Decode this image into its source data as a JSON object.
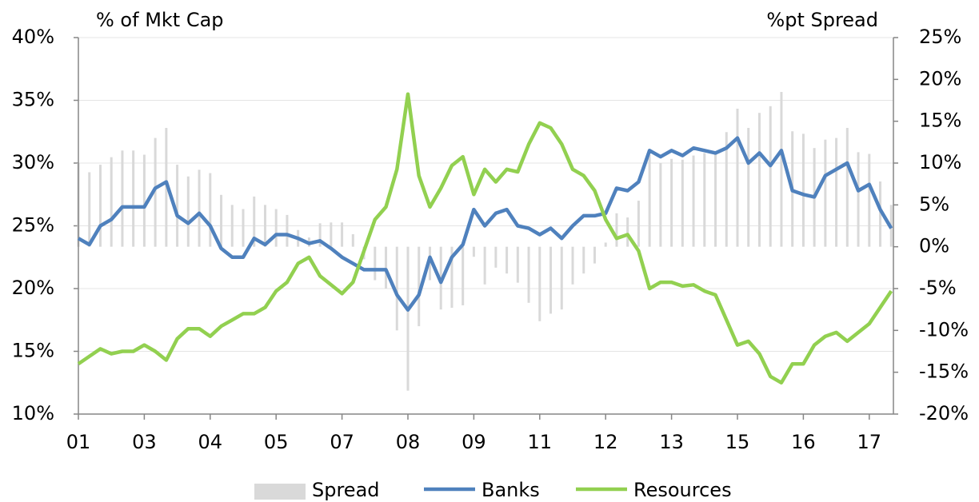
{
  "chart_data": {
    "type": "line",
    "y_label": "% of Mkt Cap",
    "y2_label": "%pt Spread",
    "categories": [
      "01",
      null,
      null,
      null,
      null,
      null,
      "03",
      null,
      null,
      null,
      null,
      null,
      "04",
      null,
      null,
      null,
      null,
      null,
      "05",
      null,
      null,
      null,
      null,
      null,
      "07",
      null,
      null,
      null,
      null,
      null,
      "08",
      null,
      null,
      null,
      null,
      null,
      "09",
      null,
      null,
      null,
      null,
      null,
      "11",
      null,
      null,
      null,
      null,
      null,
      "12",
      null,
      null,
      null,
      null,
      null,
      "13",
      null,
      null,
      null,
      null,
      null,
      "15",
      null,
      null,
      null,
      null,
      null,
      "16",
      null,
      null,
      null,
      null,
      null,
      "17",
      null,
      null
    ],
    "series": [
      {
        "name": "Spread",
        "kind": "bar",
        "axis": "y2",
        "color": "#d9d9d9",
        "values": [
          10,
          8.9,
          9.8,
          10.7,
          11.5,
          11.5,
          11,
          13,
          14.2,
          9.8,
          8.4,
          9.2,
          8.8,
          6.2,
          5,
          4.5,
          6,
          5,
          4.5,
          3.8,
          2,
          1.1,
          2.8,
          2.9,
          2.9,
          1.5,
          -1.5,
          -4,
          -5,
          -10,
          -17.2,
          -9.5,
          -4,
          -7.5,
          -7.3,
          -7,
          -1.2,
          -4.5,
          -2.5,
          -3.2,
          -4.3,
          -6.7,
          -8.9,
          -8,
          -7.5,
          -4.5,
          -3.2,
          -2,
          0.5,
          4,
          3.5,
          5.5,
          11,
          10,
          10.5,
          10.4,
          10.9,
          11.2,
          11.3,
          13.7,
          16.5,
          14.2,
          16,
          16.8,
          18.5,
          13.8,
          13.5,
          11.8,
          12.8,
          13,
          14.2,
          11.3,
          11.1,
          7.8,
          5
        ]
      },
      {
        "name": "Banks",
        "kind": "line",
        "color": "#4f81bd",
        "values": [
          24,
          23.5,
          25,
          25.5,
          26.5,
          26.5,
          26.5,
          28,
          28.5,
          25.8,
          25.2,
          26,
          25,
          23.2,
          22.5,
          22.5,
          24,
          23.5,
          24.3,
          24.3,
          24,
          23.6,
          23.8,
          23.2,
          22.5,
          22,
          21.5,
          21.5,
          21.5,
          19.5,
          18.3,
          19.5,
          22.5,
          20.5,
          22.5,
          23.5,
          26.3,
          25,
          26,
          26.3,
          25,
          24.8,
          24.3,
          24.8,
          24,
          25,
          25.8,
          25.8,
          26,
          28,
          27.8,
          28.5,
          31,
          30.5,
          31,
          30.6,
          31.2,
          31,
          30.8,
          31.2,
          32,
          30,
          30.8,
          29.8,
          31,
          27.8,
          27.5,
          27.3,
          29,
          29.5,
          30,
          27.8,
          28.3,
          26.3,
          24.8
        ]
      },
      {
        "name": "Resources",
        "kind": "line",
        "color": "#92d050",
        "values": [
          14,
          14.6,
          15.2,
          14.8,
          15,
          15,
          15.5,
          15,
          14.3,
          16,
          16.8,
          16.8,
          16.2,
          17,
          17.5,
          18,
          18,
          18.5,
          19.8,
          20.5,
          22,
          22.5,
          21,
          20.3,
          19.6,
          20.5,
          23,
          25.5,
          26.5,
          29.5,
          35.5,
          29,
          26.5,
          28,
          29.8,
          30.5,
          27.5,
          29.5,
          28.5,
          29.5,
          29.3,
          31.5,
          33.2,
          32.8,
          31.5,
          29.5,
          29,
          27.8,
          25.5,
          24,
          24.3,
          23,
          20,
          20.5,
          20.5,
          20.2,
          20.3,
          19.8,
          19.5,
          17.5,
          15.5,
          15.8,
          14.8,
          13,
          12.5,
          14,
          14,
          15.5,
          16.2,
          16.5,
          15.8,
          16.5,
          17.2,
          18.5,
          19.8
        ]
      }
    ],
    "ylim": [
      10,
      40
    ],
    "yticks": [
      {
        "value": 10,
        "label": "10%"
      },
      {
        "value": 15,
        "label": "15%"
      },
      {
        "value": 20,
        "label": "20%"
      },
      {
        "value": 25,
        "label": "25%"
      },
      {
        "value": 30,
        "label": "30%"
      },
      {
        "value": 35,
        "label": "35%"
      },
      {
        "value": 40,
        "label": "40%"
      }
    ],
    "y2lim": [
      -20,
      25
    ],
    "y2ticks": [
      {
        "value": -20,
        "label": "-20%"
      },
      {
        "value": -15,
        "label": "-15%"
      },
      {
        "value": -10,
        "label": "-10%"
      },
      {
        "value": -5,
        "label": "-5%"
      },
      {
        "value": 0,
        "label": "0%"
      },
      {
        "value": 5,
        "label": "5%"
      },
      {
        "value": 10,
        "label": "10%"
      },
      {
        "value": 15,
        "label": "15%"
      },
      {
        "value": 20,
        "label": "20%"
      },
      {
        "value": 25,
        "label": "25%"
      }
    ],
    "grid": true,
    "legend": "bottom"
  }
}
